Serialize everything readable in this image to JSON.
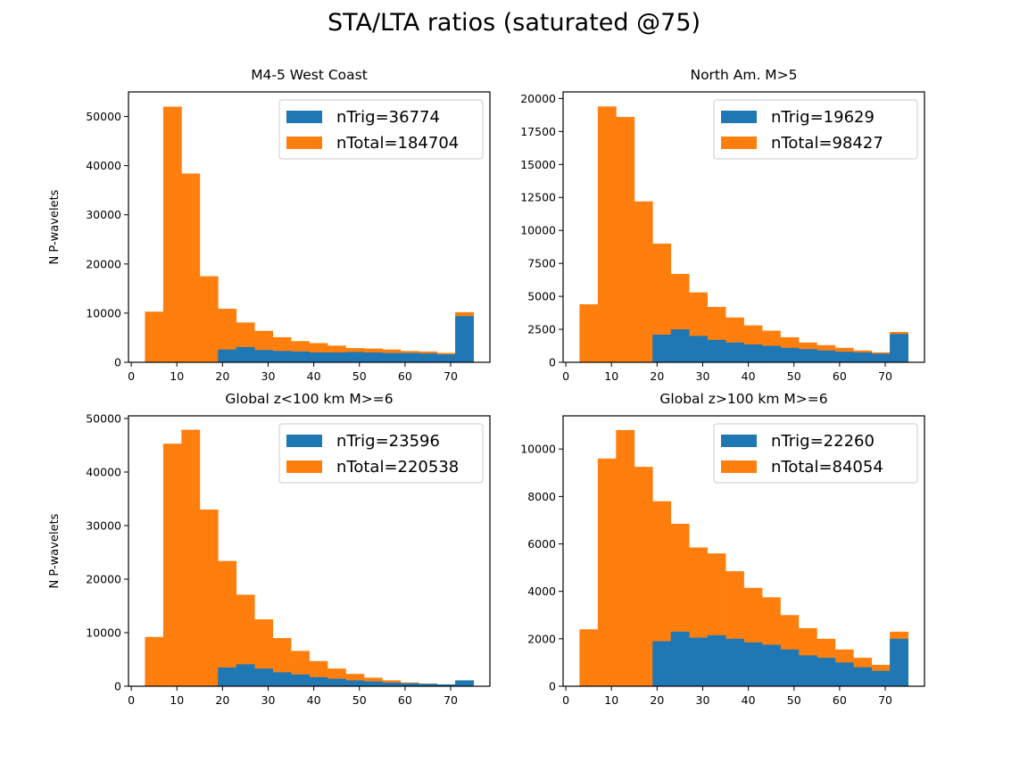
{
  "figure": {
    "suptitle": "STA/LTA ratios (saturated @75)",
    "colors": {
      "trig": "#1f77b4",
      "total": "#ff7f0e",
      "axes": "#000000",
      "legend_edge": "#cccccc"
    }
  },
  "chart_data": [
    {
      "type": "bar",
      "title": "M4-5 West Coast",
      "xlabel": "",
      "ylabel": "N P-wavelets",
      "xlim": [
        -0.6,
        78.6
      ],
      "ylim": [
        0,
        55000
      ],
      "xticks": [
        0,
        10,
        20,
        30,
        40,
        50,
        60,
        70
      ],
      "yticks": [
        0,
        10000,
        20000,
        30000,
        40000,
        50000
      ],
      "legend_position": "top-right",
      "bin_edges": [
        3,
        7,
        11,
        15,
        19,
        23,
        27,
        31,
        35,
        39,
        43,
        47,
        51,
        55,
        59,
        63,
        67,
        71,
        75
      ],
      "stacked": true,
      "series": [
        {
          "name": "nTrig=36774",
          "values": [
            0,
            0,
            0,
            0,
            2600,
            3100,
            2500,
            2300,
            2200,
            2000,
            2000,
            2100,
            2000,
            1900,
            1900,
            1800,
            1600,
            9400
          ]
        },
        {
          "name": "nTotal=184704",
          "values": [
            10300,
            52000,
            38400,
            17500,
            10900,
            8100,
            6400,
            5100,
            4300,
            3900,
            3400,
            2900,
            2800,
            2600,
            2300,
            2200,
            1900,
            10200
          ]
        }
      ]
    },
    {
      "type": "bar",
      "title": "North Am. M>5",
      "xlabel": "",
      "ylabel": "",
      "xlim": [
        -0.6,
        78.6
      ],
      "ylim": [
        0,
        20500
      ],
      "xticks": [
        0,
        10,
        20,
        30,
        40,
        50,
        60,
        70
      ],
      "yticks": [
        0,
        2500,
        5000,
        7500,
        10000,
        12500,
        15000,
        17500,
        20000
      ],
      "legend_position": "top-right",
      "bin_edges": [
        3,
        7,
        11,
        15,
        19,
        23,
        27,
        31,
        35,
        39,
        43,
        47,
        51,
        55,
        59,
        63,
        67,
        71,
        75
      ],
      "stacked": true,
      "series": [
        {
          "name": "nTrig=19629",
          "values": [
            0,
            0,
            0,
            0,
            2100,
            2500,
            2000,
            1700,
            1500,
            1350,
            1250,
            1100,
            1000,
            900,
            800,
            750,
            650,
            2150
          ]
        },
        {
          "name": "nTotal=98427",
          "values": [
            4400,
            19400,
            18600,
            12200,
            9000,
            6700,
            5300,
            4200,
            3400,
            2800,
            2400,
            1900,
            1500,
            1300,
            1100,
            900,
            750,
            2300
          ]
        }
      ]
    },
    {
      "type": "bar",
      "title": "Global z<100 km M>=6",
      "xlabel": "",
      "ylabel": "N P-wavelets",
      "xlim": [
        -0.6,
        78.6
      ],
      "ylim": [
        0,
        50500
      ],
      "xticks": [
        0,
        10,
        20,
        30,
        40,
        50,
        60,
        70
      ],
      "yticks": [
        0,
        10000,
        20000,
        30000,
        40000,
        50000
      ],
      "legend_position": "top-right",
      "bin_edges": [
        3,
        7,
        11,
        15,
        19,
        23,
        27,
        31,
        35,
        39,
        43,
        47,
        51,
        55,
        59,
        63,
        67,
        71,
        75
      ],
      "stacked": true,
      "series": [
        {
          "name": "nTrig=23596",
          "values": [
            0,
            0,
            0,
            0,
            3500,
            4100,
            3300,
            2600,
            2200,
            1700,
            1400,
            1100,
            900,
            700,
            550,
            450,
            350,
            1100
          ]
        },
        {
          "name": "nTotal=220538",
          "values": [
            9200,
            45300,
            47900,
            33000,
            23400,
            17100,
            12500,
            9000,
            6600,
            4700,
            3300,
            2300,
            1600,
            1100,
            700,
            500,
            300,
            1000
          ]
        }
      ]
    },
    {
      "type": "bar",
      "title": "Global z>100 km M>=6",
      "xlabel": "",
      "ylabel": "",
      "xlim": [
        -0.6,
        78.6
      ],
      "ylim": [
        0,
        11400
      ],
      "xticks": [
        0,
        10,
        20,
        30,
        40,
        50,
        60,
        70
      ],
      "yticks": [
        0,
        2000,
        4000,
        6000,
        8000,
        10000
      ],
      "legend_position": "top-right",
      "bin_edges": [
        3,
        7,
        11,
        15,
        19,
        23,
        27,
        31,
        35,
        39,
        43,
        47,
        51,
        55,
        59,
        63,
        67,
        71,
        75
      ],
      "stacked": true,
      "series": [
        {
          "name": "nTrig=22260",
          "values": [
            0,
            0,
            0,
            0,
            1900,
            2300,
            2050,
            2150,
            2000,
            1850,
            1750,
            1550,
            1300,
            1200,
            1000,
            800,
            650,
            2000
          ]
        },
        {
          "name": "nTotal=84054",
          "values": [
            2400,
            9600,
            10800,
            9250,
            7800,
            6850,
            5850,
            5600,
            4850,
            4150,
            3750,
            3000,
            2450,
            2000,
            1550,
            1200,
            900,
            2300
          ]
        }
      ]
    }
  ]
}
